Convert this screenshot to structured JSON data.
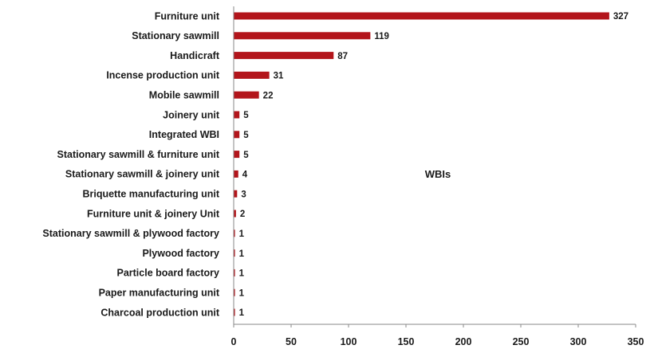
{
  "chart_data": {
    "type": "bar",
    "orientation": "horizontal",
    "categories": [
      "Furniture unit",
      "Stationary sawmill",
      "Handicraft",
      "Incense production unit",
      "Mobile sawmill",
      "Joinery unit",
      "Integrated WBI",
      "Stationary sawmill & furniture unit",
      "Stationary sawmill & joinery unit",
      "Briquette manufacturing unit",
      "Furniture unit & joinery Unit",
      "Stationary sawmill & plywood factory",
      "Plywood factory",
      "Particle board factory",
      "Paper manufacturing unit",
      "Charcoal production unit"
    ],
    "series": [
      {
        "name": "WBIs",
        "color": "#b3151b",
        "values": [
          327,
          119,
          87,
          31,
          22,
          5,
          5,
          5,
          4,
          3,
          2,
          1,
          1,
          1,
          1,
          1
        ]
      }
    ],
    "xlim": [
      0,
      350
    ],
    "xticks": [
      0,
      50,
      100,
      150,
      200,
      250,
      300,
      350
    ],
    "title": "",
    "xlabel": "",
    "ylabel": "",
    "grid": false,
    "legend": {
      "position": "center-right",
      "label": "WBIs"
    },
    "data_labels": true
  }
}
